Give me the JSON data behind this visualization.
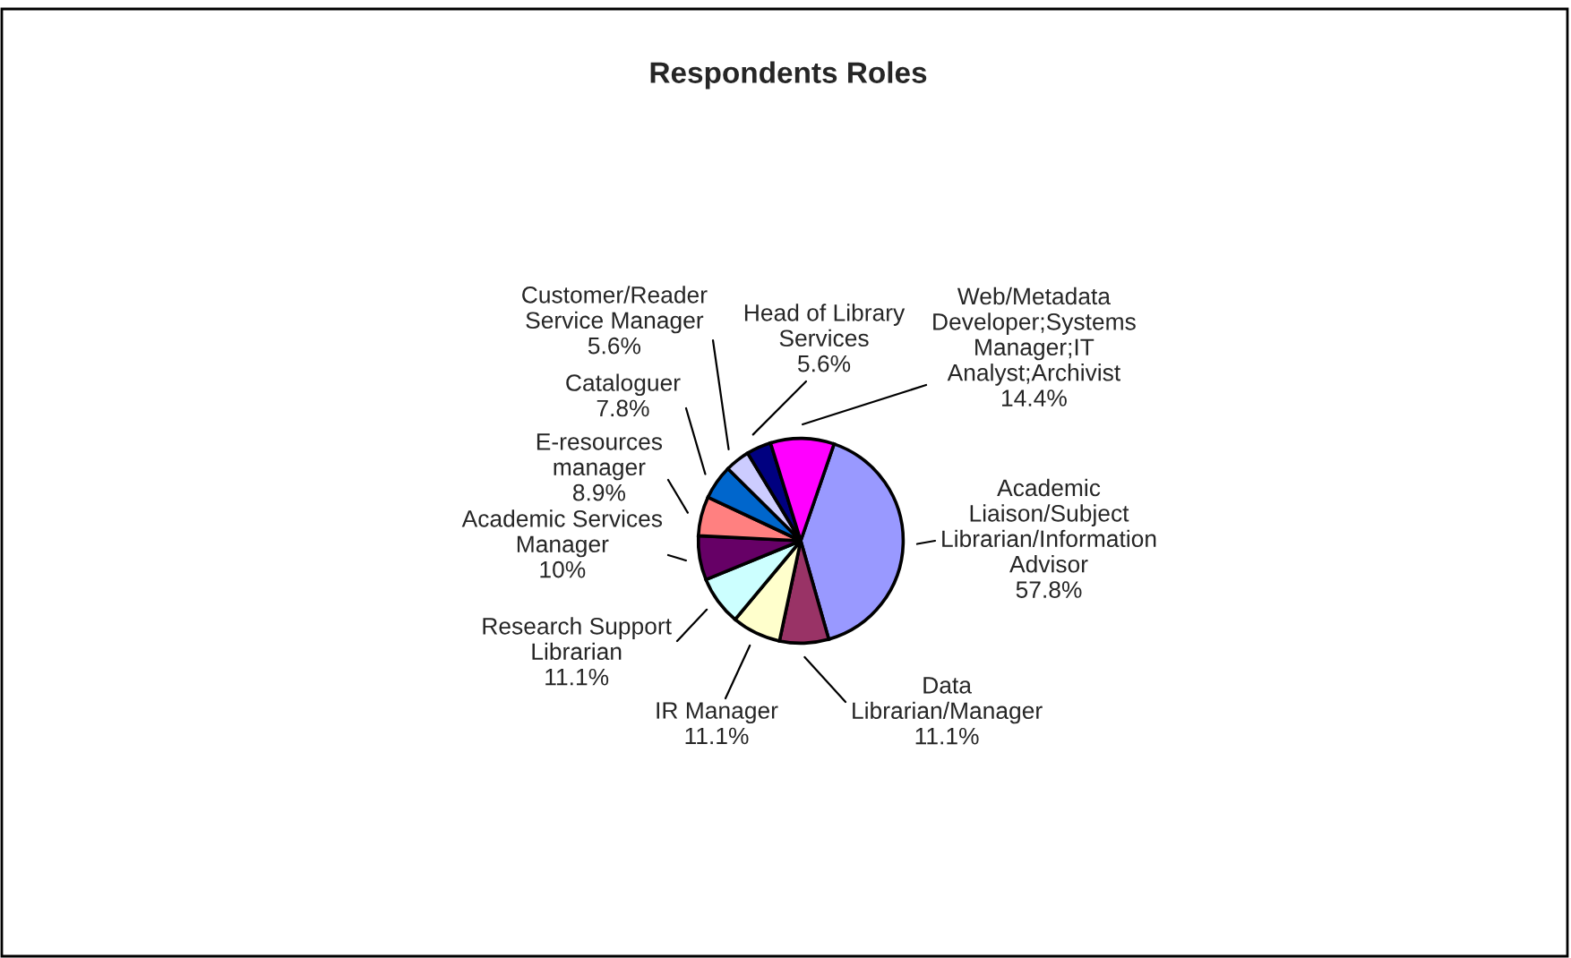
{
  "chart_data": {
    "type": "pie",
    "title": "Respondents Roles",
    "categories": [
      "Academic\nLiaison/Subject\nLibrarian/Information\nAdvisor",
      "Data\nLibrarian/Manager",
      "IR Manager",
      "Research Support\nLibrarian",
      "Academic Services\nManager",
      "E-resources\nmanager",
      "Cataloguer",
      "Customer/Reader\nService Manager",
      "Head of Library\nServices",
      "Web/Metadata\nDeveloper;Systems\nManager;IT\nAnalyst;Archivist"
    ],
    "values": [
      57.8,
      11.1,
      11.1,
      11.1,
      10,
      8.9,
      7.8,
      5.6,
      5.6,
      14.4
    ],
    "value_labels": [
      "57.8%",
      "11.1%",
      "11.1%",
      "11.1%",
      "10%",
      "8.9%",
      "7.8%",
      "5.6%",
      "5.6%",
      "14.4%"
    ],
    "colors": [
      "#9999ff",
      "#993366",
      "#ffffcc",
      "#ccffff",
      "#660066",
      "#ff8080",
      "#0066cc",
      "#ccccff",
      "#000080",
      "#ff00ff"
    ],
    "legend": false
  }
}
